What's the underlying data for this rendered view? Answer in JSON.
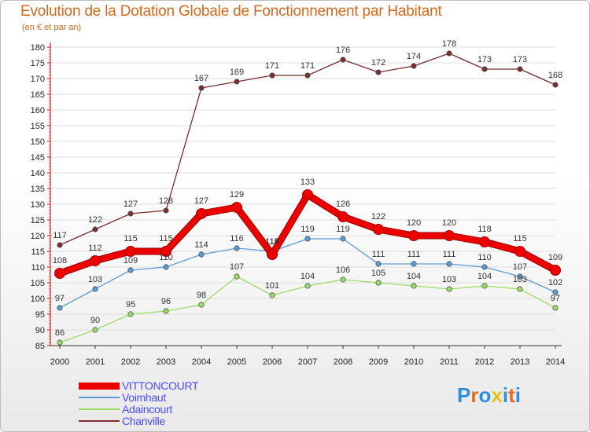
{
  "title": "Evolution de la Dotation Globale de Fonctionnement par Habitant",
  "subtitle": "(en € et par an)",
  "logo": {
    "text": "Proxiti",
    "letters": [
      "P",
      "r",
      "o",
      "x",
      "i",
      "t",
      "i"
    ],
    "colors": [
      "#2f8fd8",
      "#e36c1e",
      "#2f8fd8",
      "#e3c21e",
      "#2f8fd8",
      "#e36c1e",
      "#2f8fd8"
    ]
  },
  "chart_data": {
    "type": "line",
    "title": "Evolution de la Dotation Globale de Fonctionnement par Habitant",
    "ylabel": "(en € et par an)",
    "xlabel": "",
    "ylim": [
      85,
      180
    ],
    "yticks": [
      85,
      90,
      95,
      100,
      105,
      110,
      115,
      120,
      125,
      130,
      135,
      140,
      145,
      150,
      155,
      160,
      165,
      170,
      175,
      180
    ],
    "categories": [
      "2000",
      "2001",
      "2002",
      "2003",
      "2004",
      "2005",
      "2006",
      "2007",
      "2008",
      "2009",
      "2010",
      "2011",
      "2012",
      "2013",
      "2014"
    ],
    "series": [
      {
        "name": "VITTONCOURT",
        "color": "#ee0000",
        "width": "thick",
        "values": [
          108,
          112,
          115,
          115,
          127,
          129,
          114,
          133,
          126,
          122,
          120,
          120,
          118,
          115,
          109
        ]
      },
      {
        "name": "Voimhaut",
        "color": "#5b9bd5",
        "width": "thin",
        "values": [
          97,
          103,
          109,
          110,
          114,
          116,
          115,
          119,
          119,
          111,
          111,
          111,
          110,
          107,
          102
        ]
      },
      {
        "name": "Adaincourt",
        "color": "#99dd66",
        "width": "thin",
        "values": [
          86,
          90,
          95,
          96,
          98,
          107,
          101,
          104,
          106,
          105,
          104,
          103,
          104,
          103,
          97
        ]
      },
      {
        "name": "Chanville",
        "color": "#7b2d2d",
        "width": "thin",
        "values": [
          117,
          122,
          127,
          128,
          167,
          169,
          171,
          171,
          176,
          172,
          174,
          178,
          173,
          173,
          168
        ]
      }
    ],
    "legend": "bottom-left"
  }
}
